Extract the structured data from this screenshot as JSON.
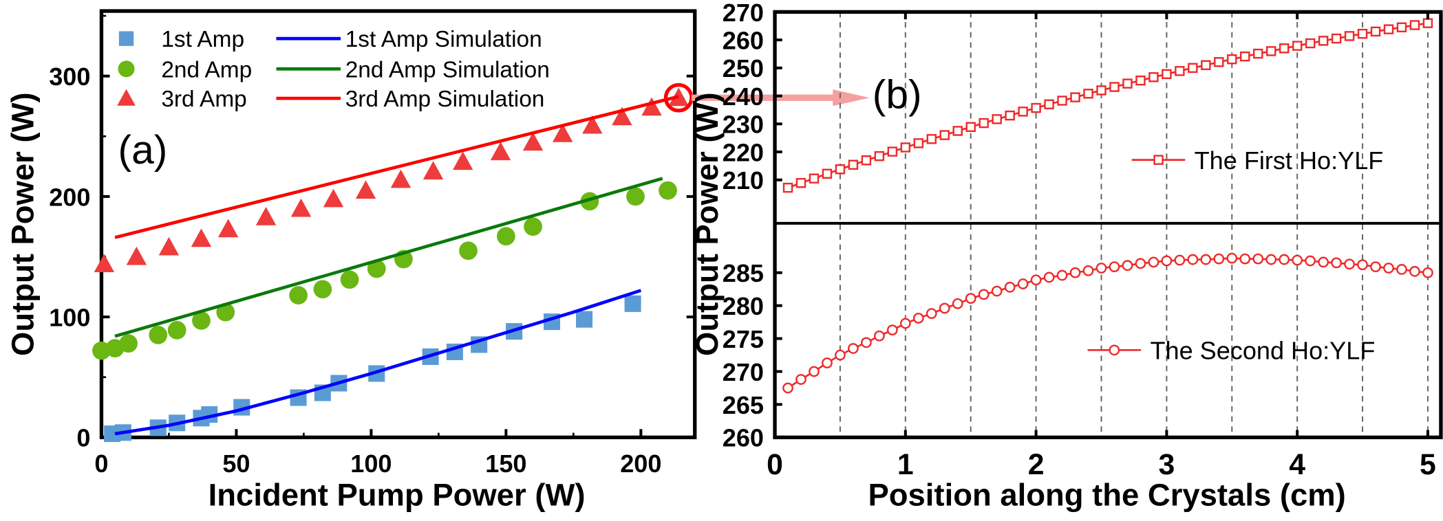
{
  "chart_data": [
    {
      "panel_label": "(a)",
      "type": "scatter",
      "xlabel": "Incident Pump Power (W)",
      "ylabel": "Output Power (W)",
      "xlim": [
        0,
        220
      ],
      "ylim": [
        0,
        354
      ],
      "xticks": [
        0,
        50,
        100,
        150,
        200
      ],
      "yticks": [
        0,
        100,
        200,
        300
      ],
      "grid": false,
      "legend_placement": "top-left",
      "series": [
        {
          "name": "1st  Amp",
          "kind": "marker",
          "marker": "square",
          "color": "#5b9bd5",
          "x": [
            4,
            8,
            21,
            28,
            37,
            40,
            52,
            73,
            82,
            88,
            102,
            122,
            131,
            140,
            153,
            167,
            179,
            197
          ],
          "y": [
            3,
            4,
            8,
            12,
            16,
            19,
            25,
            33,
            37,
            45,
            53,
            67,
            71,
            77,
            88,
            96,
            98,
            111
          ]
        },
        {
          "name": "2nd Amp",
          "kind": "marker",
          "marker": "circle",
          "color": "#6ab613",
          "x": [
            0,
            5,
            10,
            21,
            28,
            37,
            46,
            73,
            82,
            92,
            102,
            112,
            136,
            150,
            160,
            181,
            198,
            210
          ],
          "y": [
            72,
            74,
            78,
            85,
            89,
            97,
            104,
            118,
            123,
            131,
            140,
            148,
            155,
            167,
            175,
            196,
            200,
            205
          ]
        },
        {
          "name": "3rd  Amp",
          "kind": "marker",
          "marker": "triangle",
          "color": "#ee3b3b",
          "x": [
            1,
            13,
            25,
            37,
            47,
            61,
            74,
            86,
            98,
            111,
            123,
            134,
            148,
            160,
            171,
            182,
            193,
            204,
            214
          ],
          "y": [
            144,
            150,
            158,
            165,
            173,
            183,
            190,
            198,
            205,
            214,
            221,
            229,
            237,
            245,
            252,
            259,
            266,
            274,
            282
          ]
        },
        {
          "name": "1st  Amp Simulation",
          "kind": "line",
          "color": "#0000ff",
          "x": [
            5,
            25,
            50,
            75,
            100,
            125,
            150,
            175,
            200
          ],
          "y": [
            3,
            10,
            22,
            37,
            53,
            70,
            87,
            104,
            122
          ]
        },
        {
          "name": "2nd Amp Simulation",
          "kind": "line",
          "color": "#0a7a0a",
          "x": [
            5,
            208
          ],
          "y": [
            84,
            215
          ]
        },
        {
          "name": "3rd  Amp Simulation",
          "kind": "line",
          "color": "#ff0000",
          "x": [
            5,
            214
          ],
          "y": [
            166,
            283
          ]
        }
      ],
      "annotation": {
        "type": "circle-and-arrow",
        "at": [
          214,
          282
        ],
        "points_to": "(b)",
        "color": "#ff0000"
      }
    },
    {
      "panel_label": "(b)",
      "type": "line",
      "xlabel": "Position along the Crystals (cm)",
      "ylabel": "Output Power (W)",
      "xlim": [
        0,
        5.1
      ],
      "xticks": [
        0,
        1,
        2,
        3,
        4,
        5
      ],
      "grid": "vertical dashed every 0.5",
      "x": [
        0.1,
        0.2,
        0.3,
        0.4,
        0.5,
        0.6,
        0.7,
        0.8,
        0.9,
        1.0,
        1.1,
        1.2,
        1.3,
        1.4,
        1.5,
        1.6,
        1.7,
        1.8,
        1.9,
        2.0,
        2.1,
        2.2,
        2.3,
        2.4,
        2.5,
        2.6,
        2.7,
        2.8,
        2.9,
        3.0,
        3.1,
        3.2,
        3.3,
        3.4,
        3.5,
        3.6,
        3.7,
        3.8,
        3.9,
        4.0,
        4.1,
        4.2,
        4.3,
        4.4,
        4.5,
        4.6,
        4.7,
        4.8,
        4.9,
        5.0
      ],
      "subplots": [
        {
          "name": "The First Ho:YLF",
          "marker": "open-square",
          "color": "#ee2a2a",
          "ylim": [
            194.5,
            270
          ],
          "yticks": [
            210,
            220,
            230,
            240,
            250,
            260,
            270
          ],
          "legend_placement": "right",
          "y": [
            207.2,
            208.9,
            210.5,
            212.2,
            213.8,
            215.4,
            217.0,
            218.5,
            220.1,
            221.6,
            223.1,
            224.6,
            226.0,
            227.5,
            228.9,
            230.3,
            231.7,
            233.0,
            234.4,
            235.7,
            237.0,
            238.3,
            239.5,
            240.8,
            242.0,
            243.2,
            244.4,
            245.5,
            246.7,
            247.8,
            248.9,
            250.0,
            251.0,
            252.1,
            253.1,
            254.1,
            255.1,
            256.0,
            257.0,
            257.9,
            258.8,
            259.7,
            260.5,
            261.4,
            262.2,
            263.0,
            263.8,
            264.5,
            265.3,
            266.0
          ]
        },
        {
          "name": "The Second Ho:YLF",
          "marker": "open-circle",
          "color": "#ee2a2a",
          "ylim": [
            260,
            292.5
          ],
          "yticks": [
            260,
            265,
            270,
            275,
            280,
            285
          ],
          "legend_placement": "bottom-right",
          "y": [
            267.5,
            268.8,
            270.0,
            271.3,
            272.5,
            273.5,
            274.4,
            275.4,
            276.3,
            277.3,
            278.1,
            278.8,
            279.6,
            280.3,
            281.1,
            281.7,
            282.2,
            282.8,
            283.3,
            283.9,
            284.3,
            284.6,
            285.0,
            285.3,
            285.7,
            285.9,
            286.1,
            286.4,
            286.6,
            286.8,
            286.9,
            287.0,
            287.0,
            287.1,
            287.2,
            287.1,
            287.1,
            287.0,
            287.0,
            286.9,
            286.8,
            286.6,
            286.5,
            286.3,
            286.2,
            285.9,
            285.7,
            285.5,
            285.2,
            285.0
          ]
        }
      ]
    }
  ]
}
